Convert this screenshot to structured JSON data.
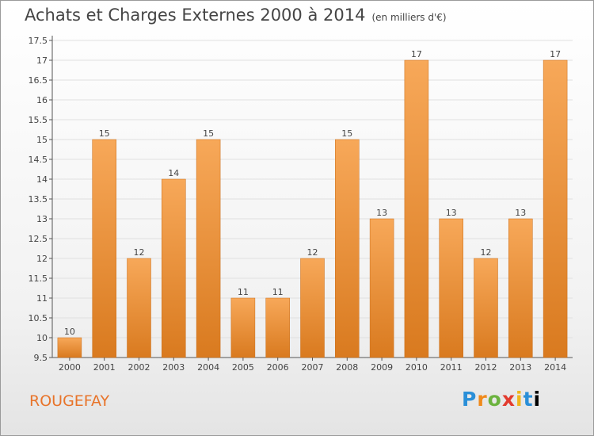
{
  "title": "Achats et Charges Externes 2000 à 2014",
  "unit_note": "(en milliers d'€)",
  "commune": "ROUGEFAY",
  "logo": [
    "P",
    "r",
    "o",
    "x",
    "i",
    "t",
    "i"
  ],
  "colors": {
    "bar_top": "#f7a859",
    "bar_bottom": "#d97a1f",
    "grid": "#e0e0e0",
    "axis": "#555555",
    "text": "#444444"
  },
  "chart_data": {
    "type": "bar",
    "title": "Achats et Charges Externes 2000 à 2014",
    "xlabel": "",
    "ylabel": "",
    "categories": [
      "2000",
      "2001",
      "2002",
      "2003",
      "2004",
      "2005",
      "2006",
      "2007",
      "2008",
      "2009",
      "2010",
      "2011",
      "2012",
      "2013",
      "2014"
    ],
    "values": [
      10,
      15,
      12,
      14,
      15,
      11,
      11,
      12,
      15,
      13,
      17,
      13,
      12,
      13,
      17
    ],
    "ylim": [
      9.5,
      17.5
    ],
    "yticks": [
      9.5,
      10,
      10.5,
      11,
      11.5,
      12,
      12.5,
      13,
      13.5,
      14,
      14.5,
      15,
      15.5,
      16,
      16.5,
      17,
      17.5
    ],
    "grid": true,
    "data_labels": true
  }
}
